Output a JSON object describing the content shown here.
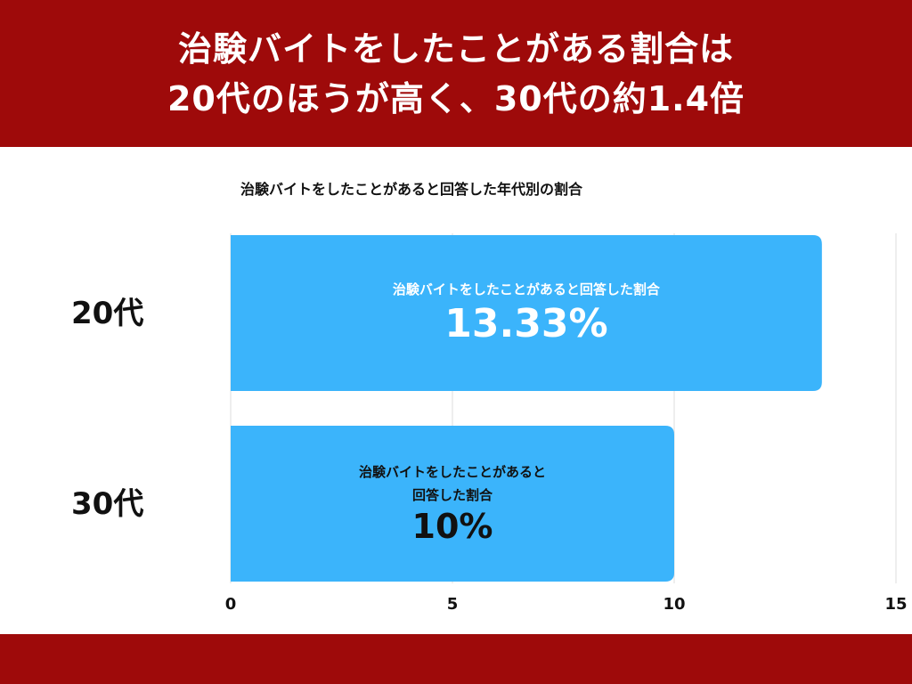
{
  "header": {
    "line1": "治験バイトをしたことがある割合は",
    "line2": "20代のほうが高く、30代の約1.4倍"
  },
  "chart_data": {
    "type": "bar",
    "orientation": "horizontal",
    "title": "治験バイトをしたことがあると回答した年代別の割合",
    "categories": [
      "20代",
      "30代"
    ],
    "series": [
      {
        "label_lines": [
          [
            "治験バイトをしたことがあると回答した割合"
          ],
          [
            "治験バイトをしたことがあると",
            "回答した割合"
          ]
        ],
        "values": [
          13.33,
          10
        ],
        "value_labels": [
          "13.33%",
          "10%"
        ]
      }
    ],
    "xlim": [
      0,
      15
    ],
    "x_ticks": [
      0,
      5,
      10,
      15
    ],
    "grid": true,
    "colors": {
      "bar": "#3bb4fb",
      "grid": "#dddddd",
      "banner": "#9e0a0a"
    }
  }
}
